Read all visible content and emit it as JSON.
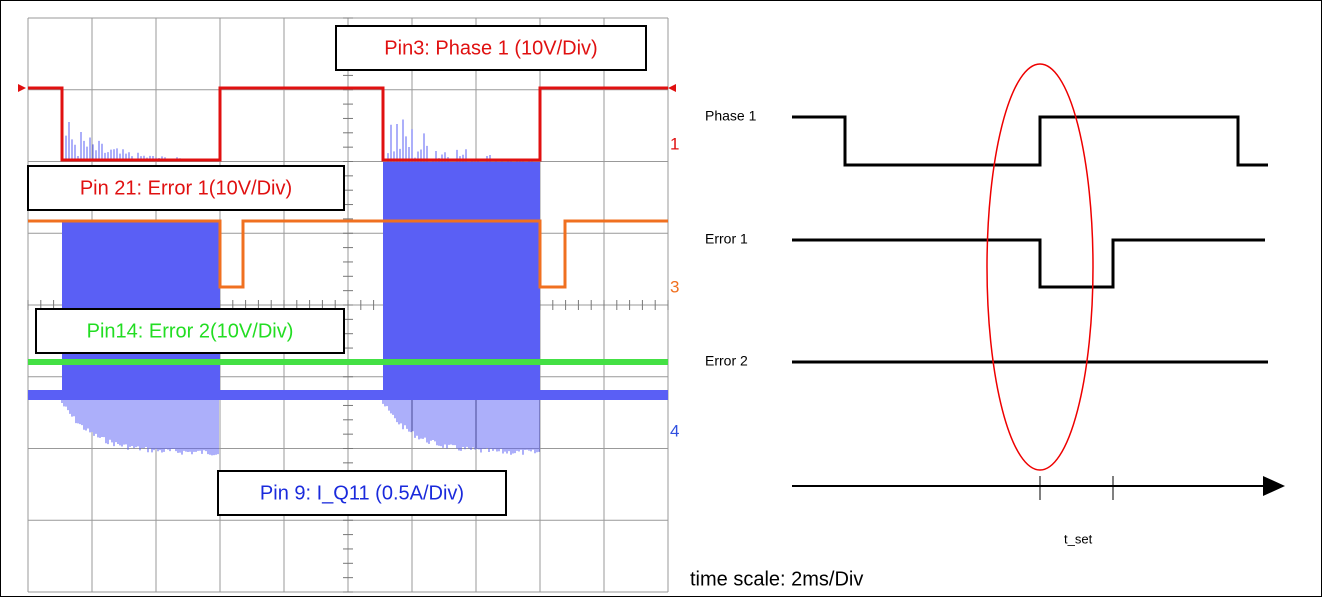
{
  "scope": {
    "labels": {
      "phase1": "Pin3: Phase 1 (10V/Div)",
      "error1": "Pin 21: Error 1(10V/Div)",
      "error2": "Pin14: Error 2(10V/Div)",
      "current": "Pin 9: I_Q11 (0.5A/Div)"
    },
    "channels": [
      "1",
      "3",
      "4"
    ]
  },
  "timing": {
    "signals": [
      "Phase 1",
      "Error 1",
      "Error 2"
    ],
    "interval": "t_set",
    "note": "time scale: 2ms/Div"
  }
}
